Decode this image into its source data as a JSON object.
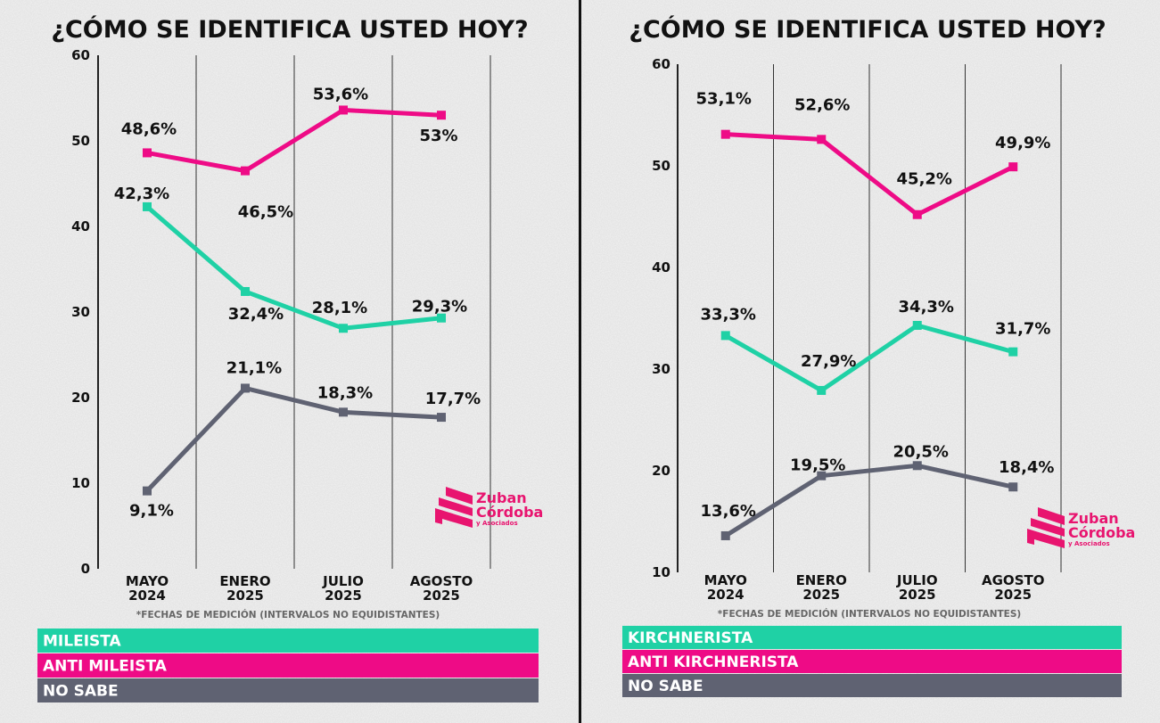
{
  "chart_data": [
    {
      "type": "line",
      "title": "¿CÓMO SE IDENTIFICA USTED HOY?",
      "categories": [
        [
          "MAYO",
          "2024"
        ],
        [
          "ENERO",
          "2025"
        ],
        [
          "JULIO",
          "2025"
        ],
        [
          "AGOSTO",
          "2025"
        ]
      ],
      "note": "*FECHAS DE MEDICIÓN (INTERVALOS NO EQUIDISTANTES)",
      "ylim": [
        0,
        60
      ],
      "yticks": [
        0,
        10,
        20,
        30,
        40,
        50,
        60
      ],
      "grid": "vertical",
      "legend_position": "bottom",
      "series": [
        {
          "name": "MILEISTA",
          "color": "#1fd1a5",
          "values": [
            42.3,
            32.4,
            28.1,
            29.3
          ],
          "labels": [
            "42,3%",
            "32,4%",
            "28,1%",
            "29,3%"
          ]
        },
        {
          "name": "ANTI MILEISTA",
          "color": "#ee0b86",
          "values": [
            48.6,
            46.5,
            53.6,
            53.0
          ],
          "labels": [
            "48,6%",
            "46,5%",
            "53,6%",
            "53%"
          ]
        },
        {
          "name": "NO SABE",
          "color": "#5f6272",
          "values": [
            9.1,
            21.1,
            18.3,
            17.7
          ],
          "labels": [
            "9,1%",
            "21,1%",
            "18,3%",
            "17,7%"
          ]
        }
      ]
    },
    {
      "type": "line",
      "title": "¿CÓMO SE IDENTIFICA USTED HOY?",
      "categories": [
        [
          "MAYO",
          "2024"
        ],
        [
          "ENERO",
          "2025"
        ],
        [
          "JULIO",
          "2025"
        ],
        [
          "AGOSTO",
          "2025"
        ]
      ],
      "note": "*FECHAS DE MEDICIÓN (INTERVALOS NO EQUIDISTANTES)",
      "ylim": [
        10,
        60
      ],
      "yticks": [
        10,
        20,
        30,
        40,
        50,
        60
      ],
      "grid": "vertical",
      "legend_position": "bottom",
      "series": [
        {
          "name": "KIRCHNERISTA",
          "color": "#1fd1a5",
          "values": [
            33.3,
            27.9,
            34.3,
            31.7
          ],
          "labels": [
            "33,3%",
            "27,9%",
            "34,3%",
            "31,7%"
          ]
        },
        {
          "name": "ANTI KIRCHNERISTA",
          "color": "#ee0b86",
          "values": [
            53.1,
            52.6,
            45.2,
            49.9
          ],
          "labels": [
            "53,1%",
            "52,6%",
            "45,2%",
            "49,9%"
          ]
        },
        {
          "name": "NO SABE",
          "color": "#5f6272",
          "values": [
            13.6,
            19.5,
            20.5,
            18.4
          ],
          "labels": [
            "13,6%",
            "19,5%",
            "20,5%",
            "18,4%"
          ]
        }
      ]
    }
  ],
  "logo": {
    "line1": "Zuban",
    "line2": "Córdoba",
    "line3": "y Asociados",
    "color": "#e8146f"
  }
}
